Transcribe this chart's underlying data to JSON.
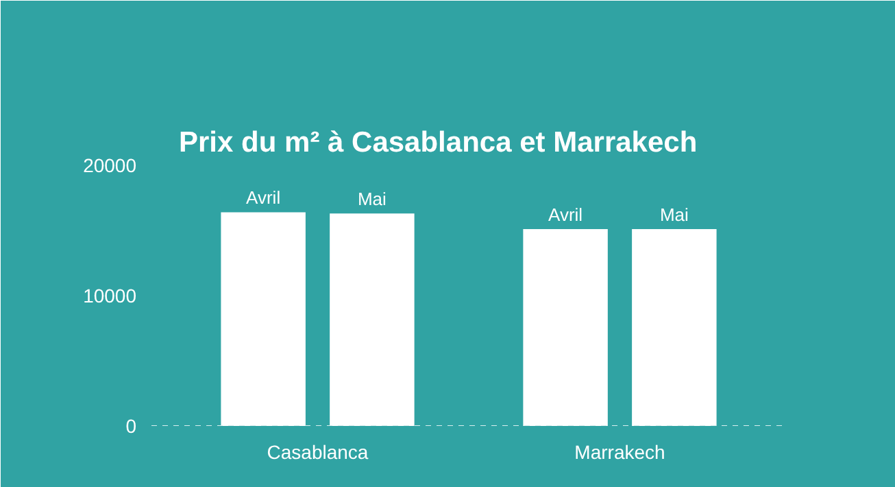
{
  "chart_data": {
    "type": "bar",
    "title": "Prix du m² à Casablanca et Marrakech",
    "categories": [
      "Casablanca",
      "Marrakech"
    ],
    "series": [
      {
        "name": "Avril",
        "color": "#ffffff",
        "values": [
          16400,
          15100
        ]
      },
      {
        "name": "Mai",
        "color": "#ffffff",
        "values": [
          16300,
          15100
        ]
      }
    ],
    "ylim": [
      0,
      20000
    ],
    "yticks": [
      0,
      10000,
      20000
    ],
    "grid": false
  }
}
